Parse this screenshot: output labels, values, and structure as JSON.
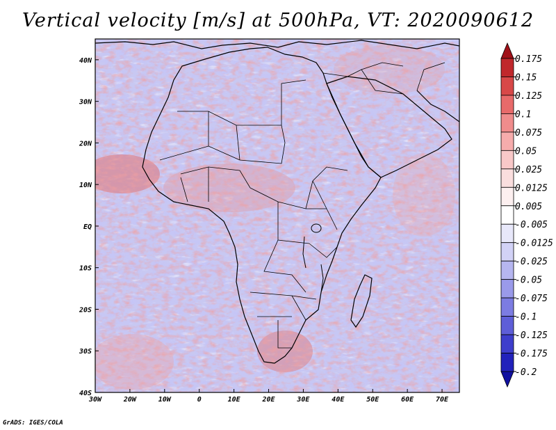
{
  "title": "Vertical velocity [m/s] at 500hPa, VT: 2020090612",
  "credit": "GrADS: IGES/COLA",
  "map": {
    "region": "Africa and surrounding oceans",
    "field": "vertical velocity at 500hPa",
    "lon_range": [
      -30,
      75
    ],
    "lat_range": [
      -40,
      45
    ],
    "x_ticks": [
      "30W",
      "20W",
      "10W",
      "0",
      "10E",
      "20E",
      "30E",
      "40E",
      "50E",
      "60E",
      "70E"
    ],
    "y_ticks": [
      "40N",
      "30N",
      "20N",
      "10N",
      "EQ",
      "10S",
      "20S",
      "30S",
      "40S"
    ]
  },
  "colorbar": {
    "labels": [
      "0.175",
      "0.15",
      "0.125",
      "0.1",
      "0.075",
      "0.05",
      "0.025",
      "0.0125",
      "0.005",
      "-0.005",
      "-0.0125",
      "-0.025",
      "-0.05",
      "-0.075",
      "-0.1",
      "-0.125",
      "-0.175",
      "-0.2"
    ],
    "colors": [
      "#a01018",
      "#c0282c",
      "#d84848",
      "#e86a6a",
      "#f08c8c",
      "#f6acac",
      "#f8c8c8",
      "#fadede",
      "#fdf0f0",
      "#ffffff",
      "#e8e8fa",
      "#d2d2f6",
      "#b6b6f0",
      "#9a9aea",
      "#7c7ce2",
      "#5e5ed8",
      "#3e3ecc",
      "#2222bb",
      "#1010a0"
    ]
  }
}
